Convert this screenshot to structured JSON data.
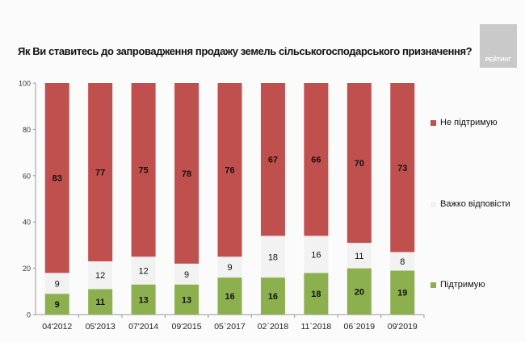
{
  "title": "Як Ви ставитесь до запровадження продажу земель сільськогосподарського призначення?",
  "logo_text": "РЕЙТИНГ",
  "chart_data": {
    "type": "bar",
    "stacked": true,
    "categories": [
      "04'2012",
      "05'2013",
      "07'2014",
      "09'2015",
      "05`2017",
      "02`2018",
      "11`2018",
      "06`2019",
      "09'2019"
    ],
    "series": [
      {
        "name": "Підтримую",
        "color": "#8db04f",
        "values": [
          9,
          11,
          13,
          13,
          16,
          16,
          18,
          20,
          19
        ]
      },
      {
        "name": "Важко відповісти",
        "color": "#f2f2f2",
        "values": [
          9,
          12,
          12,
          9,
          9,
          18,
          16,
          11,
          8
        ]
      },
      {
        "name": "Не підтримую",
        "color": "#c0504d",
        "values": [
          83,
          77,
          75,
          78,
          76,
          67,
          66,
          70,
          73
        ]
      }
    ],
    "ylim": [
      0,
      100
    ],
    "yticks": [
      "0",
      "20",
      "40",
      "60",
      "80",
      "100"
    ],
    "legend_position": "right",
    "grid": false
  }
}
